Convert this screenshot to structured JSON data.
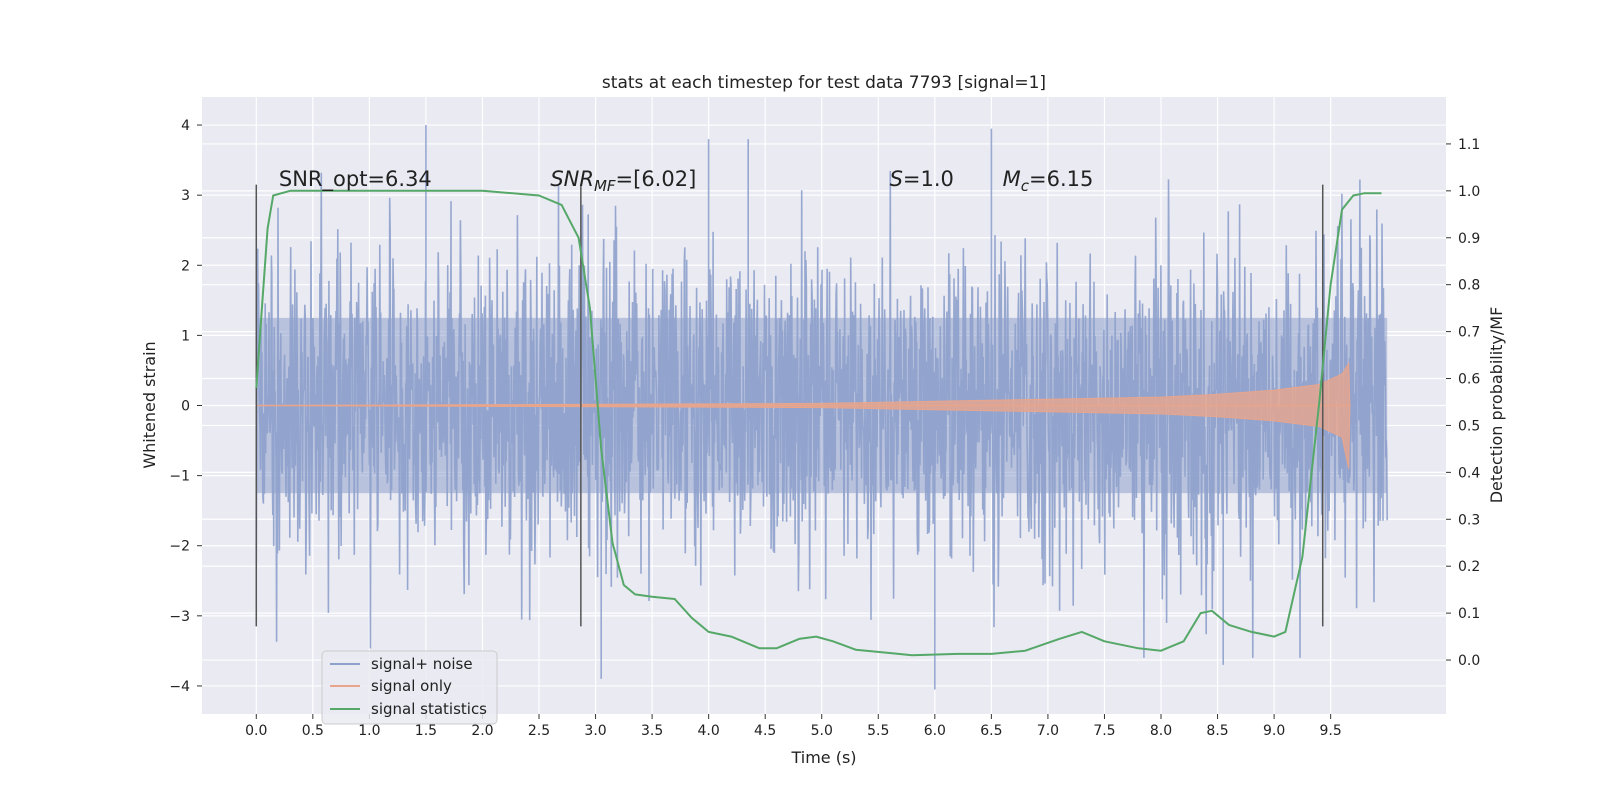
{
  "chart_data": {
    "type": "line",
    "title": "stats at each timestep for test data 7793 [signal=1]",
    "xlabel": "Time (s)",
    "ylabel": "Whitened strain",
    "y2label": "Detection probability/MF",
    "xlim": [
      -0.48,
      10.52
    ],
    "ylim": [
      -4.4,
      4.4
    ],
    "y2lim": [
      -0.115,
      1.2
    ],
    "x_ticks": [
      "0.0",
      "0.5",
      "1.0",
      "1.5",
      "2.0",
      "2.5",
      "3.0",
      "3.5",
      "4.0",
      "4.5",
      "5.0",
      "5.5",
      "6.0",
      "6.5",
      "7.0",
      "7.5",
      "8.0",
      "8.5",
      "9.0",
      "9.5"
    ],
    "x_tick_values": [
      0,
      0.5,
      1,
      1.5,
      2,
      2.5,
      3,
      3.5,
      4,
      4.5,
      5,
      5.5,
      6,
      6.5,
      7,
      7.5,
      8,
      8.5,
      9,
      9.5
    ],
    "y_ticks": [
      "−4",
      "−3",
      "−2",
      "−1",
      "0",
      "1",
      "2",
      "3",
      "4"
    ],
    "y_tick_values": [
      -4,
      -3,
      -2,
      -1,
      0,
      1,
      2,
      3,
      4
    ],
    "y2_ticks": [
      "0.0",
      "0.1",
      "0.2",
      "0.3",
      "0.4",
      "0.5",
      "0.6",
      "0.7",
      "0.8",
      "0.9",
      "1.0",
      "1.1"
    ],
    "y2_tick_values": [
      0,
      0.1,
      0.2,
      0.3,
      0.4,
      0.5,
      0.6,
      0.7,
      0.8,
      0.9,
      1.0,
      1.1
    ],
    "grid": true,
    "legend_position": "lower-left",
    "series": [
      {
        "name": "signal+ noise",
        "color": "#8ea1cc",
        "axis": "left",
        "x_range": [
          0.0,
          10.0
        ],
        "typical_amplitude": 1.3,
        "peaks": [
          {
            "x": 1.5,
            "y": 4.0
          },
          {
            "x": 3.05,
            "y": -3.9
          },
          {
            "x": 4.0,
            "y": 3.8
          },
          {
            "x": 4.35,
            "y": 3.8
          },
          {
            "x": 6.0,
            "y": -4.05
          },
          {
            "x": 6.5,
            "y": 3.95
          },
          {
            "x": 8.55,
            "y": -3.7
          }
        ]
      },
      {
        "name": "signal only",
        "color": "#e8a58c",
        "axis": "left",
        "envelope": [
          [
            0.0,
            0.0
          ],
          [
            5.0,
            0.03
          ],
          [
            6.0,
            0.06
          ],
          [
            7.0,
            0.09
          ],
          [
            8.0,
            0.12
          ],
          [
            8.5,
            0.16
          ],
          [
            9.0,
            0.22
          ],
          [
            9.4,
            0.3
          ],
          [
            9.6,
            0.45
          ],
          [
            9.66,
            0.6
          ],
          [
            9.67,
            0.0
          ]
        ]
      },
      {
        "name": "signal statistics",
        "color": "#55a868",
        "axis": "right",
        "points": [
          [
            0.0,
            0.58
          ],
          [
            0.05,
            0.75
          ],
          [
            0.1,
            0.92
          ],
          [
            0.15,
            0.99
          ],
          [
            0.3,
            1.0
          ],
          [
            1.0,
            1.0
          ],
          [
            2.0,
            1.0
          ],
          [
            2.5,
            0.99
          ],
          [
            2.7,
            0.97
          ],
          [
            2.85,
            0.9
          ],
          [
            2.95,
            0.75
          ],
          [
            3.05,
            0.45
          ],
          [
            3.15,
            0.25
          ],
          [
            3.25,
            0.16
          ],
          [
            3.35,
            0.14
          ],
          [
            3.5,
            0.135
          ],
          [
            3.7,
            0.13
          ],
          [
            3.85,
            0.09
          ],
          [
            4.0,
            0.06
          ],
          [
            4.2,
            0.05
          ],
          [
            4.45,
            0.025
          ],
          [
            4.6,
            0.025
          ],
          [
            4.8,
            0.045
          ],
          [
            4.95,
            0.05
          ],
          [
            5.1,
            0.04
          ],
          [
            5.3,
            0.022
          ],
          [
            5.6,
            0.015
          ],
          [
            5.8,
            0.01
          ],
          [
            6.2,
            0.013
          ],
          [
            6.5,
            0.013
          ],
          [
            6.8,
            0.02
          ],
          [
            7.1,
            0.045
          ],
          [
            7.3,
            0.06
          ],
          [
            7.5,
            0.04
          ],
          [
            7.8,
            0.025
          ],
          [
            8.0,
            0.02
          ],
          [
            8.2,
            0.04
          ],
          [
            8.35,
            0.1
          ],
          [
            8.45,
            0.105
          ],
          [
            8.6,
            0.075
          ],
          [
            8.8,
            0.06
          ],
          [
            9.0,
            0.05
          ],
          [
            9.1,
            0.06
          ],
          [
            9.25,
            0.22
          ],
          [
            9.4,
            0.55
          ],
          [
            9.5,
            0.8
          ],
          [
            9.6,
            0.96
          ],
          [
            9.7,
            0.99
          ],
          [
            9.8,
            0.995
          ],
          [
            9.95,
            0.995
          ]
        ]
      }
    ],
    "vertical_lines": [
      0.0,
      2.87,
      9.43
    ],
    "annotations": [
      {
        "label": "snr-opt-annotation",
        "text": "SNR_opt=6.34",
        "x": 0.2,
        "y": 3.1
      },
      {
        "label": "snr-mf-annotation",
        "text": "SNR_MF=[6.02]",
        "x": 2.6,
        "y": 3.1
      },
      {
        "label": "s-annotation",
        "text": "S=1.0",
        "x": 5.6,
        "y": 3.1
      },
      {
        "label": "mc-annotation",
        "text": "M_c=6.15",
        "x": 6.6,
        "y": 3.1
      }
    ]
  }
}
